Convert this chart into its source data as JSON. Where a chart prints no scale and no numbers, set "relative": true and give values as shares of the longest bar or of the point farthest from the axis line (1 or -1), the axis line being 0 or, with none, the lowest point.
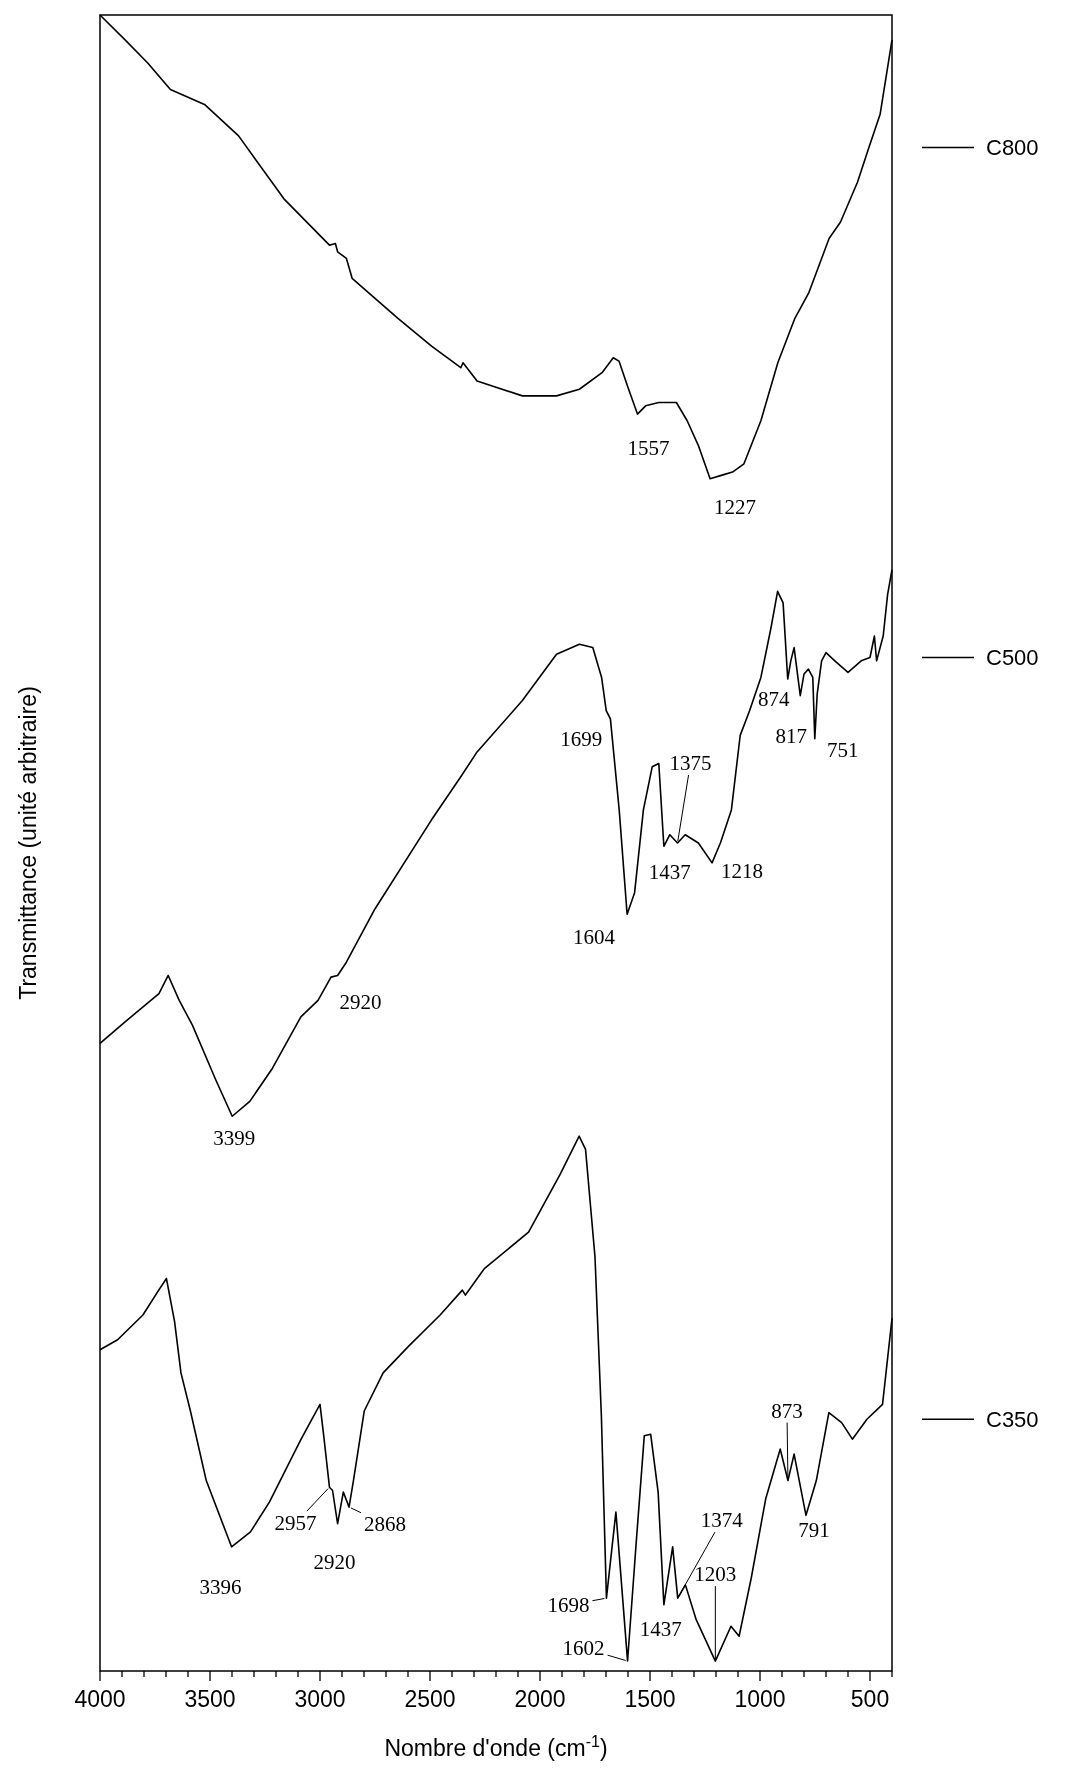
{
  "chart_data": {
    "type": "line",
    "relative": true,
    "xlabel": "Nombre d'onde (cm$^{-1}$)",
    "ylabel": "Transmittance (unité arbitraire)",
    "legend": "right",
    "xlim": [
      4000,
      400
    ],
    "xticks": [
      4000,
      {
        "value": 3900,
        "label": null
      },
      {
        "value": 3800,
        "label": null
      },
      {
        "value": 3700,
        "label": null
      },
      {
        "value": 3600,
        "label": null
      },
      3500,
      {
        "value": 3400,
        "label": null
      },
      {
        "value": 3300,
        "label": null
      },
      {
        "value": 3200,
        "label": null
      },
      {
        "value": 3100,
        "label": null
      },
      3000,
      {
        "value": 2900,
        "label": null
      },
      {
        "value": 2800,
        "label": null
      },
      {
        "value": 2700,
        "label": null
      },
      {
        "value": 2600,
        "label": null
      },
      2500,
      {
        "value": 2400,
        "label": null
      },
      {
        "value": 2300,
        "label": null
      },
      {
        "value": 2200,
        "label": null
      },
      {
        "value": 2100,
        "label": null
      },
      2000,
      {
        "value": 1900,
        "label": null
      },
      {
        "value": 1800,
        "label": null
      },
      {
        "value": 1700,
        "label": null
      },
      {
        "value": 1600,
        "label": null
      },
      1500,
      {
        "value": 1400,
        "label": null
      },
      {
        "value": 1300,
        "label": null
      },
      {
        "value": 1200,
        "label": null
      },
      {
        "value": 1100,
        "label": null
      },
      1000,
      {
        "value": 900,
        "label": null
      },
      {
        "value": 800,
        "label": null
      },
      {
        "value": 700,
        "label": null
      },
      {
        "value": 600,
        "label": null
      },
      500,
      {
        "value": 400,
        "label": null
      }
    ],
    "series": [
      {
        "name": "C800",
        "color": "#000000",
        "x": [
          4000,
          3886,
          3783,
          3680,
          3525,
          3370,
          3164,
          2957,
          2930,
          2920,
          2880,
          2854,
          2647,
          2493,
          2360,
          2350,
          2286,
          2080,
          1925,
          1821,
          1718,
          1667,
          1641,
          1600,
          1557,
          1520,
          1460,
          1380,
          1331,
          1280,
          1227,
          1176,
          1125,
          1073,
          996,
          919,
          841,
          779,
          686,
          634,
          557,
          505,
          454,
          400
        ],
        "values": [
          1.0,
          0.985,
          0.971,
          0.955,
          0.946,
          0.927,
          0.889,
          0.861,
          0.862,
          0.857,
          0.853,
          0.841,
          0.817,
          0.8,
          0.787,
          0.79,
          0.779,
          0.77,
          0.77,
          0.774,
          0.784,
          0.793,
          0.791,
          0.775,
          0.759,
          0.764,
          0.766,
          0.766,
          0.755,
          0.74,
          0.72,
          0.722,
          0.724,
          0.729,
          0.755,
          0.79,
          0.817,
          0.832,
          0.865,
          0.875,
          0.899,
          0.92,
          0.94,
          0.985
        ]
      },
      {
        "name": "C500",
        "color": "#000000",
        "x": [
          4000,
          3886,
          3732,
          3690,
          3640,
          3580,
          3474,
          3399,
          3319,
          3216,
          3087,
          3009,
          2950,
          2920,
          2880,
          2751,
          2493,
          2360,
          2286,
          2080,
          1925,
          1821,
          1760,
          1720,
          1699,
          1680,
          1640,
          1604,
          1570,
          1530,
          1490,
          1460,
          1437,
          1410,
          1375,
          1340,
          1280,
          1218,
          1180,
          1130,
          1090,
          1047,
          996,
          950,
          920,
          895,
          874,
          860,
          845,
          817,
          800,
          780,
          760,
          751,
          740,
          720,
          700,
          660,
          600,
          540,
          500,
          480,
          470,
          440,
          420,
          400
        ],
        "values": [
          0.379,
          0.392,
          0.409,
          0.42,
          0.405,
          0.39,
          0.357,
          0.335,
          0.344,
          0.364,
          0.395,
          0.405,
          0.419,
          0.42,
          0.428,
          0.46,
          0.514,
          0.54,
          0.555,
          0.586,
          0.614,
          0.62,
          0.618,
          0.6,
          0.58,
          0.575,
          0.52,
          0.457,
          0.47,
          0.52,
          0.546,
          0.548,
          0.498,
          0.505,
          0.5,
          0.505,
          0.5,
          0.488,
          0.5,
          0.52,
          0.565,
          0.58,
          0.6,
          0.63,
          0.652,
          0.645,
          0.599,
          0.61,
          0.618,
          0.589,
          0.602,
          0.605,
          0.6,
          0.563,
          0.59,
          0.61,
          0.615,
          0.61,
          0.603,
          0.61,
          0.612,
          0.625,
          0.61,
          0.625,
          0.65,
          0.665
        ]
      },
      {
        "name": "C350",
        "color": "#000000",
        "x": [
          4000,
          3920,
          3805,
          3733,
          3698,
          3661,
          3632,
          3589,
          3517,
          3402,
          3316,
          3230,
          3086,
          3000,
          2983,
          2957,
          2943,
          2920,
          2894,
          2868,
          2848,
          2799,
          2713,
          2598,
          2454,
          2353,
          2339,
          2253,
          2052,
          1908,
          1822,
          1793,
          1750,
          1721,
          1698,
          1655,
          1602,
          1563,
          1526,
          1497,
          1463,
          1437,
          1397,
          1374,
          1339,
          1290,
          1203,
          1132,
          1095,
          1040,
          974,
          908,
          873,
          845,
          791,
          744,
          687,
          629,
          580,
          514,
          443,
          400
        ],
        "values": [
          0.194,
          0.2,
          0.215,
          0.23,
          0.237,
          0.211,
          0.18,
          0.157,
          0.115,
          0.075,
          0.084,
          0.102,
          0.14,
          0.161,
          0.142,
          0.111,
          0.109,
          0.089,
          0.108,
          0.099,
          0.115,
          0.157,
          0.18,
          0.196,
          0.215,
          0.23,
          0.227,
          0.243,
          0.265,
          0.3,
          0.323,
          0.315,
          0.25,
          0.154,
          0.044,
          0.096,
          0.006,
          0.077,
          0.142,
          0.143,
          0.108,
          0.04,
          0.075,
          0.044,
          0.052,
          0.031,
          0.006,
          0.027,
          0.021,
          0.056,
          0.104,
          0.134,
          0.115,
          0.131,
          0.094,
          0.115,
          0.156,
          0.15,
          0.14,
          0.152,
          0.161,
          0.213
        ]
      }
    ],
    "annotations": [
      {
        "text": "1557",
        "x": 1557,
        "y": 0.759
      },
      {
        "text": "1227",
        "x": 1227,
        "y": 0.72
      },
      {
        "text": "1699",
        "x": 1699,
        "y": 0.58
      },
      {
        "text": "1604",
        "x": 1604,
        "y": 0.457
      },
      {
        "text": "1375",
        "x": 1375,
        "y": 0.5
      },
      {
        "text": "1437",
        "x": 1437,
        "y": 0.498
      },
      {
        "text": "1218",
        "x": 1218,
        "y": 0.488
      },
      {
        "text": "874",
        "x": 874,
        "y": 0.599
      },
      {
        "text": "817",
        "x": 817,
        "y": 0.589
      },
      {
        "text": "751",
        "x": 751,
        "y": 0.563
      },
      {
        "text": "2920",
        "x": 2920,
        "y": 0.42
      },
      {
        "text": "3399",
        "x": 3399,
        "y": 0.335
      },
      {
        "text": "3396",
        "x": 3402,
        "y": 0.075
      },
      {
        "text": "2957",
        "x": 2957,
        "y": 0.111
      },
      {
        "text": "2920",
        "x": 2920,
        "y": 0.089
      },
      {
        "text": "2868",
        "x": 2868,
        "y": 0.099
      },
      {
        "text": "1698",
        "x": 1698,
        "y": 0.044
      },
      {
        "text": "1602",
        "x": 1602,
        "y": 0.006
      },
      {
        "text": "1437",
        "x": 1437,
        "y": 0.04
      },
      {
        "text": "1374",
        "x": 1374,
        "y": 0.044
      },
      {
        "text": "1203",
        "x": 1203,
        "y": 0.006
      },
      {
        "text": "873",
        "x": 873,
        "y": 0.115
      },
      {
        "text": "791",
        "x": 791,
        "y": 0.094
      }
    ]
  }
}
